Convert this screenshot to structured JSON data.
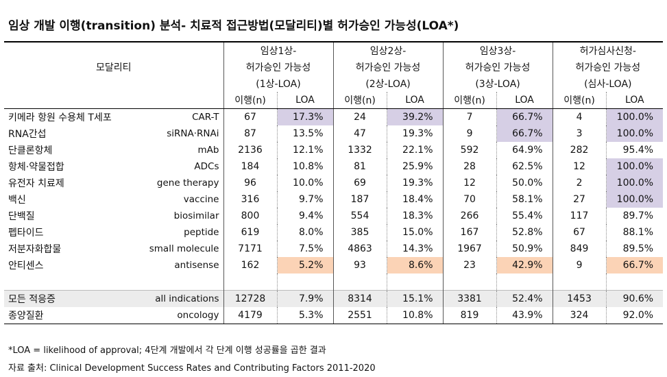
{
  "title": "임상 개발 이행(transition) 분석- 치료적 접근방법(모달리티)별 허가승인 가능성(LOA*)",
  "header": {
    "modality": "모달리티",
    "phases": [
      {
        "line1": "임상1상-",
        "line2": "허가승인 가능성",
        "line3": "(1상-LOA)"
      },
      {
        "line1": "임상2상-",
        "line2": "허가승인 가능성",
        "line3": "(2상-LOA)"
      },
      {
        "line1": "임상3상-",
        "line2": "허가승인 가능성",
        "line3": "(3상-LOA)"
      },
      {
        "line1": "허가심사신청-",
        "line2": "허가승인 가능성",
        "line3": "(심사-LOA)"
      }
    ],
    "n_label": "이행(n)",
    "loa_label": "LOA"
  },
  "rows": [
    {
      "ko": "키메라 항원 수용체 T세포",
      "en": "CAR-T",
      "p1n": "67",
      "p1": "17.3%",
      "p2n": "24",
      "p2": "39.2%",
      "p3n": "7",
      "p3": "66.7%",
      "p4n": "4",
      "p4": "100.0%"
    },
    {
      "ko": "RNA간섭",
      "en": "siRNA·RNAi",
      "p1n": "87",
      "p1": "13.5%",
      "p2n": "47",
      "p2": "19.3%",
      "p3n": "9",
      "p3": "66.7%",
      "p4n": "3",
      "p4": "100.0%"
    },
    {
      "ko": "단클론항체",
      "en": "mAb",
      "p1n": "2136",
      "p1": "12.1%",
      "p2n": "1332",
      "p2": "22.1%",
      "p3n": "592",
      "p3": "64.9%",
      "p4n": "282",
      "p4": "95.4%"
    },
    {
      "ko": "항체·약물접합",
      "en": "ADCs",
      "p1n": "184",
      "p1": "10.8%",
      "p2n": "81",
      "p2": "25.9%",
      "p3n": "28",
      "p3": "62.5%",
      "p4n": "12",
      "p4": "100.0%"
    },
    {
      "ko": "유전자 치료제",
      "en": "gene therapy",
      "p1n": "96",
      "p1": "10.0%",
      "p2n": "69",
      "p2": "19.3%",
      "p3n": "12",
      "p3": "50.0%",
      "p4n": "2",
      "p4": "100.0%"
    },
    {
      "ko": "백신",
      "en": "vaccine",
      "p1n": "316",
      "p1": "9.7%",
      "p2n": "187",
      "p2": "18.4%",
      "p3n": "70",
      "p3": "58.1%",
      "p4n": "27",
      "p4": "100.0%"
    },
    {
      "ko": "단백질",
      "en": "biosimilar",
      "p1n": "800",
      "p1": "9.4%",
      "p2n": "554",
      "p2": "18.3%",
      "p3n": "266",
      "p3": "55.4%",
      "p4n": "117",
      "p4": "89.7%"
    },
    {
      "ko": "펩타이드",
      "en": "peptide",
      "p1n": "619",
      "p1": "8.0%",
      "p2n": "385",
      "p2": "15.0%",
      "p3n": "167",
      "p3": "52.8%",
      "p4n": "67",
      "p4": "88.1%"
    },
    {
      "ko": "저분자화합물",
      "en": "small molecule",
      "p1n": "7171",
      "p1": "7.5%",
      "p2n": "4863",
      "p2": "14.3%",
      "p3n": "1967",
      "p3": "50.9%",
      "p4n": "849",
      "p4": "89.5%"
    },
    {
      "ko": "안티센스",
      "en": "antisense",
      "p1n": "162",
      "p1": "5.2%",
      "p2n": "93",
      "p2": "8.6%",
      "p3n": "23",
      "p3": "42.9%",
      "p4n": "9",
      "p4": "66.7%"
    }
  ],
  "summary": [
    {
      "ko": "모든 적응증",
      "en": "all indications",
      "p1n": "12728",
      "p1": "7.9%",
      "p2n": "8314",
      "p2": "15.1%",
      "p3n": "3381",
      "p3": "52.4%",
      "p4n": "1453",
      "p4": "90.6%"
    },
    {
      "ko": "종양질환",
      "en": "oncology",
      "p1n": "4179",
      "p1": "5.3%",
      "p2n": "2551",
      "p2": "10.8%",
      "p3n": "819",
      "p3": "43.9%",
      "p4n": "324",
      "p4": "92.0%"
    }
  ],
  "highlight_colors": {
    "max": "#d6cfe5",
    "min": "#fbd3b6"
  },
  "footnote": "*LOA = likelihood of approval; 4단계 개발에서 각 단계 이행 성공률을 곱한 결과",
  "source": "자료 출처: Clinical Development Success Rates and Contributing Factors 2011-2020"
}
